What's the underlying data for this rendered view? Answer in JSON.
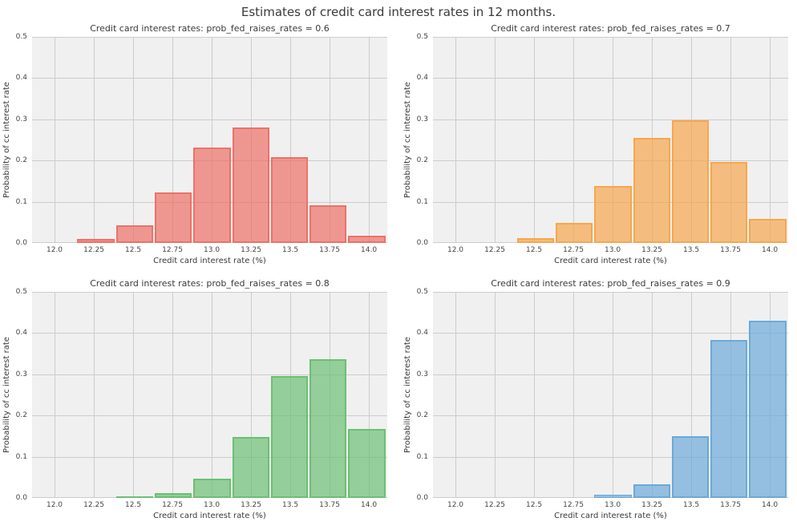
{
  "figure": {
    "title": "Estimates of credit card interest rates in 12 months.",
    "background_color": "#ffffff",
    "plot_background_color": "#f0f0f0",
    "grid_color": "#cccccc",
    "text_color": "#3a3a3a"
  },
  "chart_data": [
    {
      "type": "bar",
      "title": "Credit card interest rates: prob_fed_raises_rates = 0.6",
      "xlabel": "Credit card interest rate (%)",
      "ylabel": "Probability of cc interest rate",
      "xlim": [
        11.857,
        14.117
      ],
      "ylim": [
        0,
        0.5
      ],
      "grid": true,
      "legend": false,
      "xticks": [
        12.0,
        12.25,
        12.5,
        12.75,
        13.0,
        13.25,
        13.5,
        13.75,
        14.0
      ],
      "xtick_labels": [
        "12.0",
        "12.25",
        "12.5",
        "12.75",
        "13.0",
        "13.25",
        "13.5",
        "13.75",
        "14.0"
      ],
      "yticks": [
        0.0,
        0.1,
        0.2,
        0.3,
        0.4,
        0.5
      ],
      "ytick_labels": [
        "0.0",
        "0.1",
        "0.2",
        "0.3",
        "0.4",
        "0.5"
      ],
      "bin_edges": [
        12.14,
        12.386,
        12.633,
        12.879,
        13.125,
        13.371,
        13.618,
        13.864,
        14.11
      ],
      "values": [
        0.01,
        0.043,
        0.123,
        0.232,
        0.28,
        0.208,
        0.092,
        0.017
      ],
      "fill_color": "rgba(237,113,104,0.7)",
      "edge_color": "#ed7168",
      "series_color_name": "salmon-red"
    },
    {
      "type": "bar",
      "title": "Credit card interest rates: prob_fed_raises_rates = 0.7",
      "xlabel": "Credit card interest rate (%)",
      "ylabel": "Probability of cc interest rate",
      "xlim": [
        11.857,
        14.117
      ],
      "ylim": [
        0,
        0.5
      ],
      "grid": true,
      "legend": false,
      "xticks": [
        12.0,
        12.25,
        12.5,
        12.75,
        13.0,
        13.25,
        13.5,
        13.75,
        14.0
      ],
      "xtick_labels": [
        "12.0",
        "12.25",
        "12.5",
        "12.75",
        "13.0",
        "13.25",
        "13.5",
        "13.75",
        "14.0"
      ],
      "yticks": [
        0.0,
        0.1,
        0.2,
        0.3,
        0.4,
        0.5
      ],
      "ytick_labels": [
        "0.0",
        "0.1",
        "0.2",
        "0.3",
        "0.4",
        "0.5"
      ],
      "bin_edges": [
        12.14,
        12.386,
        12.633,
        12.879,
        13.125,
        13.371,
        13.618,
        13.864,
        14.11
      ],
      "values": [
        0,
        0.012,
        0.049,
        0.138,
        0.254,
        0.297,
        0.197,
        0.058
      ],
      "fill_color": "rgba(245,167,78,0.7)",
      "edge_color": "#f5a74e",
      "series_color_name": "orange"
    },
    {
      "type": "bar",
      "title": "Credit card interest rates: prob_fed_raises_rates = 0.8",
      "xlabel": "Credit card interest rate (%)",
      "ylabel": "Probability of cc interest rate",
      "xlim": [
        11.857,
        14.117
      ],
      "ylim": [
        0,
        0.5
      ],
      "grid": true,
      "legend": false,
      "xticks": [
        12.0,
        12.25,
        12.5,
        12.75,
        13.0,
        13.25,
        13.5,
        13.75,
        14.0
      ],
      "xtick_labels": [
        "12.0",
        "12.25",
        "12.5",
        "12.75",
        "13.0",
        "13.25",
        "13.5",
        "13.75",
        "14.0"
      ],
      "yticks": [
        0.0,
        0.1,
        0.2,
        0.3,
        0.4,
        0.5
      ],
      "ytick_labels": [
        "0.0",
        "0.1",
        "0.2",
        "0.3",
        "0.4",
        "0.5"
      ],
      "bin_edges": [
        12.14,
        12.386,
        12.633,
        12.879,
        13.125,
        13.371,
        13.618,
        13.864,
        14.11
      ],
      "values": [
        0,
        0.004,
        0.011,
        0.047,
        0.148,
        0.295,
        0.337,
        0.168
      ],
      "fill_color": "rgba(108,191,117,0.7)",
      "edge_color": "#6cbf75",
      "series_color_name": "green"
    },
    {
      "type": "bar",
      "title": "Credit card interest rates: prob_fed_raises_rates = 0.9",
      "xlabel": "Credit card interest rate (%)",
      "ylabel": "Probability of cc interest rate",
      "xlim": [
        11.857,
        14.117
      ],
      "ylim": [
        0,
        0.5
      ],
      "grid": true,
      "legend": false,
      "xticks": [
        12.0,
        12.25,
        12.5,
        12.75,
        13.0,
        13.25,
        13.5,
        13.75,
        14.0
      ],
      "xtick_labels": [
        "12.0",
        "12.25",
        "12.5",
        "12.75",
        "13.0",
        "13.25",
        "13.5",
        "13.75",
        "14.0"
      ],
      "yticks": [
        0.0,
        0.1,
        0.2,
        0.3,
        0.4,
        0.5
      ],
      "ytick_labels": [
        "0.0",
        "0.1",
        "0.2",
        "0.3",
        "0.4",
        "0.5"
      ],
      "bin_edges": [
        12.14,
        12.386,
        12.633,
        12.879,
        13.125,
        13.371,
        13.618,
        13.864,
        14.11
      ],
      "values": [
        0,
        0,
        0,
        0.008,
        0.034,
        0.15,
        0.384,
        0.43
      ],
      "fill_color": "rgba(108,169,216,0.7)",
      "edge_color": "#6ca9d8",
      "series_color_name": "blue"
    }
  ]
}
